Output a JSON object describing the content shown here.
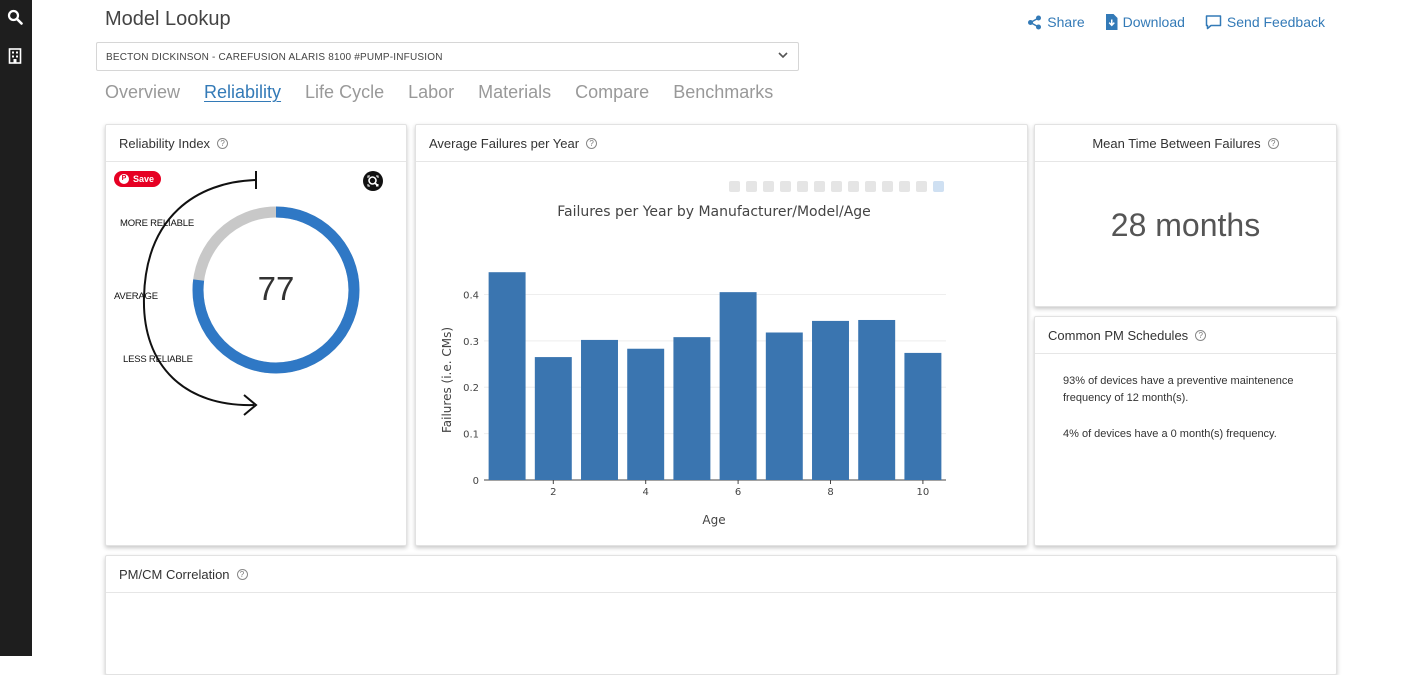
{
  "page": {
    "title": "Model Lookup"
  },
  "actions": {
    "share": "Share",
    "download": "Download",
    "feedback": "Send Feedback"
  },
  "model_select": {
    "value": "BECTON DICKINSON - CAREFUSION ALARIS 8100 #PUMP-INFUSION"
  },
  "tabs": [
    {
      "label": "Overview",
      "active": false
    },
    {
      "label": "Reliability",
      "active": true
    },
    {
      "label": "Life Cycle",
      "active": false
    },
    {
      "label": "Labor",
      "active": false
    },
    {
      "label": "Materials",
      "active": false
    },
    {
      "label": "Compare",
      "active": false
    },
    {
      "label": "Benchmarks",
      "active": false
    }
  ],
  "reliability": {
    "title": "Reliability Index",
    "save_label": "Save",
    "value": "77",
    "value_fraction": 0.77,
    "labels": {
      "more": "MORE RELIABLE",
      "average": "AVERAGE",
      "less": "LESS RELIABLE"
    },
    "colors": {
      "fill": "#2f78c5",
      "track": "#c8c8c8"
    }
  },
  "failures": {
    "title": "Average Failures per Year"
  },
  "chart_data": {
    "type": "bar",
    "title": "Failures per Year by Manufacturer/Model/Age",
    "xlabel": "Age",
    "ylabel": "Failures (i.e. CMs)",
    "x": [
      1,
      2,
      3,
      4,
      5,
      6,
      7,
      8,
      9,
      10
    ],
    "values": [
      0.448,
      0.265,
      0.302,
      0.283,
      0.308,
      0.405,
      0.318,
      0.343,
      0.345,
      0.274
    ],
    "xticks": [
      2,
      4,
      6,
      8,
      10
    ],
    "yticks": [
      0,
      0.1,
      0.2,
      0.3,
      0.4
    ],
    "ylim": [
      0,
      0.47
    ],
    "xlim": [
      0.5,
      10.5
    ],
    "grid": true,
    "color": "#3a75b0"
  },
  "mtbf": {
    "title": "Mean Time Between Failures",
    "value": "28 months"
  },
  "pm": {
    "title": "Common PM Schedules",
    "line1": "93% of devices have a preventive maintenence frequency of 12 month(s).",
    "line2": "4% of devices have a 0 month(s) frequency."
  },
  "correlation": {
    "title": "PM/CM Correlation"
  }
}
